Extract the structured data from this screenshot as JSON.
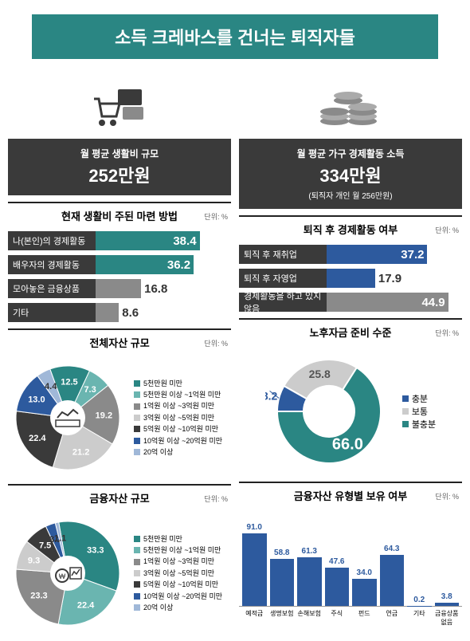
{
  "title": "소득 크레바스를 건너는 퇴직자들",
  "unit_label": "단위: %",
  "left": {
    "stat": {
      "label": "월 평균 생활비 규모",
      "value": "252만원"
    },
    "bars": {
      "title": "현재 생활비 주된 마련 방법",
      "max": 50,
      "items": [
        {
          "label": "나(본인)의 경제활동",
          "value": 38.4,
          "color": "#2a8683"
        },
        {
          "label": "배우자의 경제활동",
          "value": 36.2,
          "color": "#2a8683"
        },
        {
          "label": "모아놓은 금융상품",
          "value": 16.8,
          "color": "#8a8a8a"
        },
        {
          "label": "기타",
          "value": 8.6,
          "color": "#8a8a8a"
        }
      ]
    },
    "pie1": {
      "title": "전체자산 규모",
      "items": [
        {
          "label": "5천만원 미만",
          "value": 12.5,
          "color": "#2a8683"
        },
        {
          "label": "5천만원 이상 ~1억원 미만",
          "value": 7.3,
          "color": "#6ab5b0"
        },
        {
          "label": "1억원 이상 ~3억원 미만",
          "value": 19.2,
          "color": "#8a8a8a"
        },
        {
          "label": "3억원 이상 ~5억원 미만",
          "value": 21.2,
          "color": "#cccccc"
        },
        {
          "label": "5억원 이상 ~10억원 미만",
          "value": 22.4,
          "color": "#3a3a3a"
        },
        {
          "label": "10억원 이상 ~20억원 미만",
          "value": 13.0,
          "color": "#2d5a9e"
        },
        {
          "label": "20억 이상",
          "value": 4.4,
          "color": "#a0b8d8"
        }
      ]
    },
    "pie2": {
      "title": "금융자산 규모",
      "items": [
        {
          "label": "5천만원 미만",
          "value": 33.3,
          "color": "#2a8683"
        },
        {
          "label": "5천만원 이상 ~1억원 미만",
          "value": 22.4,
          "color": "#6ab5b0"
        },
        {
          "label": "1억원 이상 ~3억원 미만",
          "value": 23.3,
          "color": "#8a8a8a"
        },
        {
          "label": "3억원 이상 ~5억원 미만",
          "value": 9.3,
          "color": "#cccccc"
        },
        {
          "label": "5억원 이상 ~10억원 미만",
          "value": 7.5,
          "color": "#3a3a3a"
        },
        {
          "label": "10억원 이상 ~20억원 미만",
          "value": 3.1,
          "color": "#2d5a9e"
        },
        {
          "label": "20억 이상",
          "value": 1.1,
          "color": "#a0b8d8"
        }
      ]
    }
  },
  "right": {
    "stat": {
      "label": "월 평균 가구 경제활동 소득",
      "value": "334만원",
      "sub": "(퇴직자 개인 월 256만원)"
    },
    "bars": {
      "title": "퇴직 후 경제활동 여부",
      "max": 50,
      "items": [
        {
          "label": "퇴직 후 재취업",
          "value": 37.2,
          "color": "#2d5a9e"
        },
        {
          "label": "퇴직 후 자영업",
          "value": 17.9,
          "color": "#2d5a9e"
        },
        {
          "label": "경제활동을 하고 있지 않음",
          "value": 44.9,
          "color": "#8a8a8a"
        }
      ]
    },
    "donut": {
      "title": "노후자금 준비 수준",
      "items": [
        {
          "label": "충분",
          "value": 8.2,
          "color": "#2d5a9e"
        },
        {
          "label": "보통",
          "value": 25.8,
          "color": "#cccccc"
        },
        {
          "label": "불충분",
          "value": 66.0,
          "color": "#2a8683"
        }
      ]
    },
    "vbars": {
      "title": "금융자산 유형별 보유 여부",
      "max": 100,
      "color": "#2d5a9e",
      "items": [
        {
          "label": "예적금",
          "value": 91.0
        },
        {
          "label": "생명보험",
          "value": 58.8
        },
        {
          "label": "손해보험",
          "value": 61.3
        },
        {
          "label": "주식",
          "value": 47.6
        },
        {
          "label": "펀드",
          "value": 34.0
        },
        {
          "label": "연금",
          "value": 64.3
        },
        {
          "label": "기타",
          "value": 0.2
        },
        {
          "label": "금융상품 없음",
          "value": 3.8
        }
      ]
    }
  }
}
